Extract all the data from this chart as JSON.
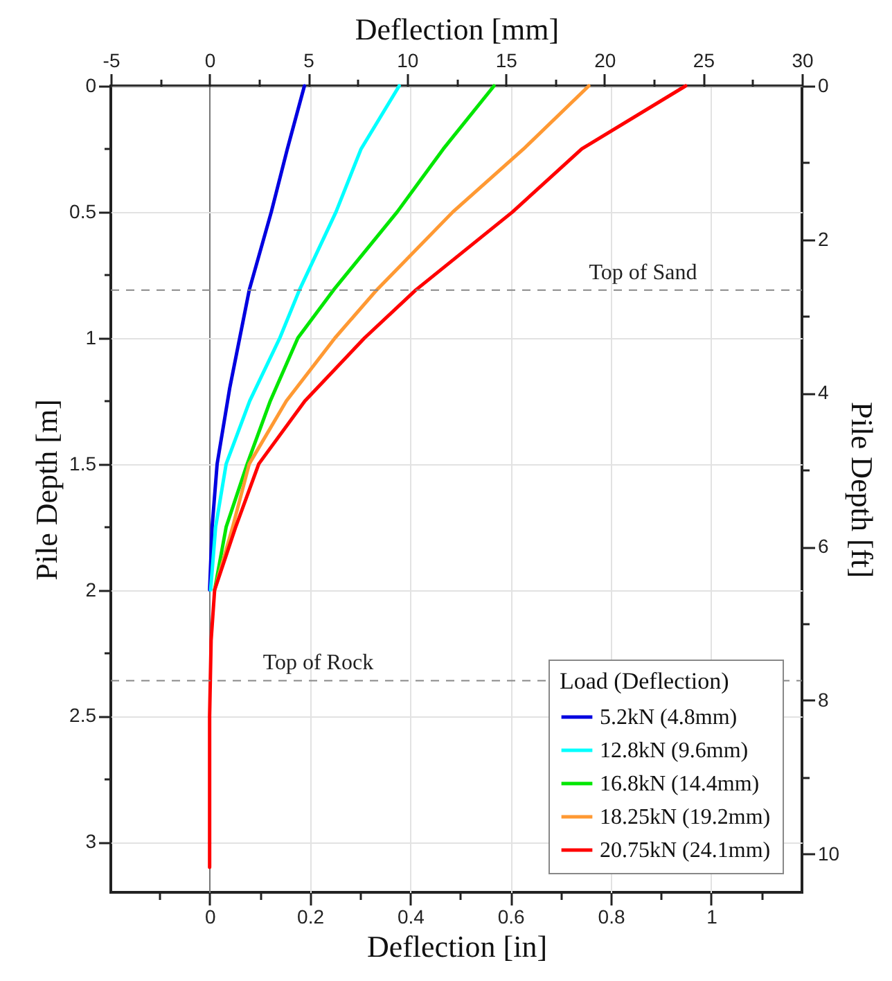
{
  "chart_data": {
    "type": "line",
    "xlabel": "Deflection [in]",
    "x2label": "Deflection [mm]",
    "ylabel": "Pile Depth [m]",
    "y2label": "Pile Depth [ft]",
    "legend_title": "Load (Deflection)",
    "legend": "bottom right",
    "grid": true,
    "xlim": [
      -0.197,
      1.181
    ],
    "xticks": [
      {
        "value": -0.1,
        "label": null
      },
      0,
      {
        "value": 0.1,
        "label": null
      },
      0.2,
      {
        "value": 0.3,
        "label": null
      },
      0.4,
      {
        "value": 0.5,
        "label": null
      },
      0.6,
      {
        "value": 0.7,
        "label": null
      },
      0.8,
      {
        "value": 0.9,
        "label": null
      },
      1,
      {
        "value": 1.1,
        "label": null
      }
    ],
    "x2lim": [
      -5,
      30
    ],
    "x2ticks": [
      -5,
      {
        "value": -2.5,
        "label": null
      },
      0,
      {
        "value": 2.5,
        "label": null
      },
      5,
      {
        "value": 7.5,
        "label": null
      },
      10,
      {
        "value": 12.5,
        "label": null
      },
      15,
      {
        "value": 17.5,
        "label": null
      },
      20,
      {
        "value": 22.5,
        "label": null
      },
      25,
      {
        "value": 27.5,
        "label": null
      },
      30
    ],
    "ylim": [
      3.2,
      0
    ],
    "yticks": [
      0,
      {
        "value": 0.25,
        "label": null
      },
      0.5,
      {
        "value": 0.75,
        "label": null
      },
      1,
      {
        "value": 1.25,
        "label": null
      },
      1.5,
      {
        "value": 1.75,
        "label": null
      },
      2,
      {
        "value": 2.25,
        "label": null
      },
      2.5,
      {
        "value": 2.75,
        "label": null
      },
      3
    ],
    "y2lim": [
      10.5,
      0
    ],
    "y2ticks": [
      0,
      {
        "value": 1,
        "label": null
      },
      2,
      {
        "value": 3,
        "label": null
      },
      4,
      {
        "value": 5,
        "label": null
      },
      6,
      {
        "value": 7,
        "label": null
      },
      8,
      {
        "value": 9,
        "label": null
      },
      10
    ],
    "ref_lines": [
      {
        "axis": "y",
        "value": 0.81,
        "label": "Top of Sand",
        "color": "#888888",
        "line_style": "dashed"
      },
      {
        "axis": "y",
        "value": 2.36,
        "label": "Top of Rock",
        "color": "#888888",
        "line_style": "dashed"
      }
    ],
    "series": [
      {
        "name": "5.2kN (4.8mm)",
        "color": "#0000e0",
        "x": [
          0.189,
          0.155,
          0.123,
          0.079,
          0.06,
          0.04,
          0.015,
          0.005,
          0
        ],
        "values": [
          0,
          0.25,
          0.5,
          0.81,
          1,
          1.2,
          1.5,
          1.75,
          2
        ]
      },
      {
        "name": "12.8kN (9.6mm)",
        "color": "#00ffff",
        "x": [
          0.378,
          0.302,
          0.252,
          0.179,
          0.14,
          0.08,
          0.033,
          0.012,
          0.002
        ],
        "values": [
          0,
          0.25,
          0.5,
          0.81,
          1,
          1.25,
          1.5,
          1.75,
          2
        ]
      },
      {
        "name": "16.8kN (14.4mm)",
        "color": "#00e600",
        "x": [
          0.567,
          0.466,
          0.374,
          0.247,
          0.176,
          0.121,
          0.075,
          0.033,
          0.01
        ],
        "values": [
          0,
          0.25,
          0.5,
          0.81,
          1,
          1.25,
          1.5,
          1.75,
          2
        ]
      },
      {
        "name": "18.25kN (19.2mm)",
        "color": "#ff9933",
        "x": [
          0.756,
          0.626,
          0.485,
          0.333,
          0.25,
          0.153,
          0.079,
          0.046,
          0.01
        ],
        "values": [
          0,
          0.25,
          0.5,
          0.81,
          1,
          1.25,
          1.5,
          1.75,
          2
        ]
      },
      {
        "name": "20.75kN (24.1mm)",
        "color": "#ff0000",
        "x": [
          0.949,
          0.742,
          0.604,
          0.411,
          0.309,
          0.19,
          0.098,
          0.052,
          0.01,
          0.003,
          0,
          0
        ],
        "values": [
          0,
          0.25,
          0.5,
          0.81,
          1,
          1.25,
          1.5,
          1.75,
          2,
          2.2,
          2.5,
          3.1
        ]
      }
    ]
  }
}
